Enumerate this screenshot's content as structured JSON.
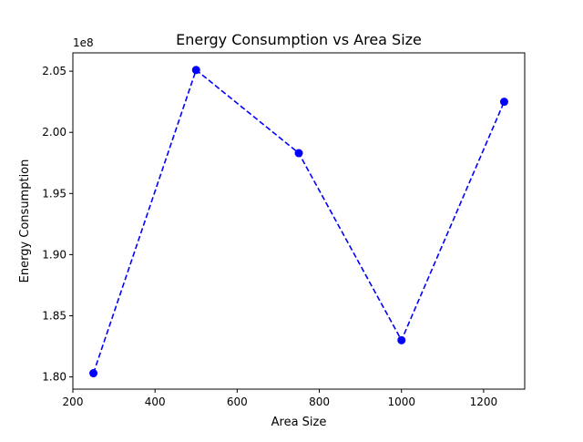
{
  "chart_data": {
    "type": "line",
    "title": "Energy Consumption vs Area Size",
    "xlabel": "Area Size",
    "ylabel": "Energy Consumption",
    "y_offset_label": "1e8",
    "xlim": [
      200,
      1300
    ],
    "ylim": [
      179000000,
      206500000
    ],
    "x_ticks": [
      200,
      400,
      600,
      800,
      1000,
      1200
    ],
    "x_tick_labels": [
      "200",
      "400",
      "600",
      "800",
      "1000",
      "1200"
    ],
    "y_ticks": [
      180000000,
      185000000,
      190000000,
      195000000,
      200000000,
      205000000
    ],
    "y_tick_labels": [
      "1.80",
      "1.85",
      "1.90",
      "1.95",
      "2.00",
      "2.05"
    ],
    "grid": false,
    "series": [
      {
        "color": "#0000ff",
        "line_style": "dashed",
        "marker": "circle",
        "x": [
          250,
          500,
          750,
          1000,
          1250
        ],
        "y": [
          180300000,
          205100000,
          198300000,
          183000000,
          202500000
        ]
      }
    ]
  }
}
